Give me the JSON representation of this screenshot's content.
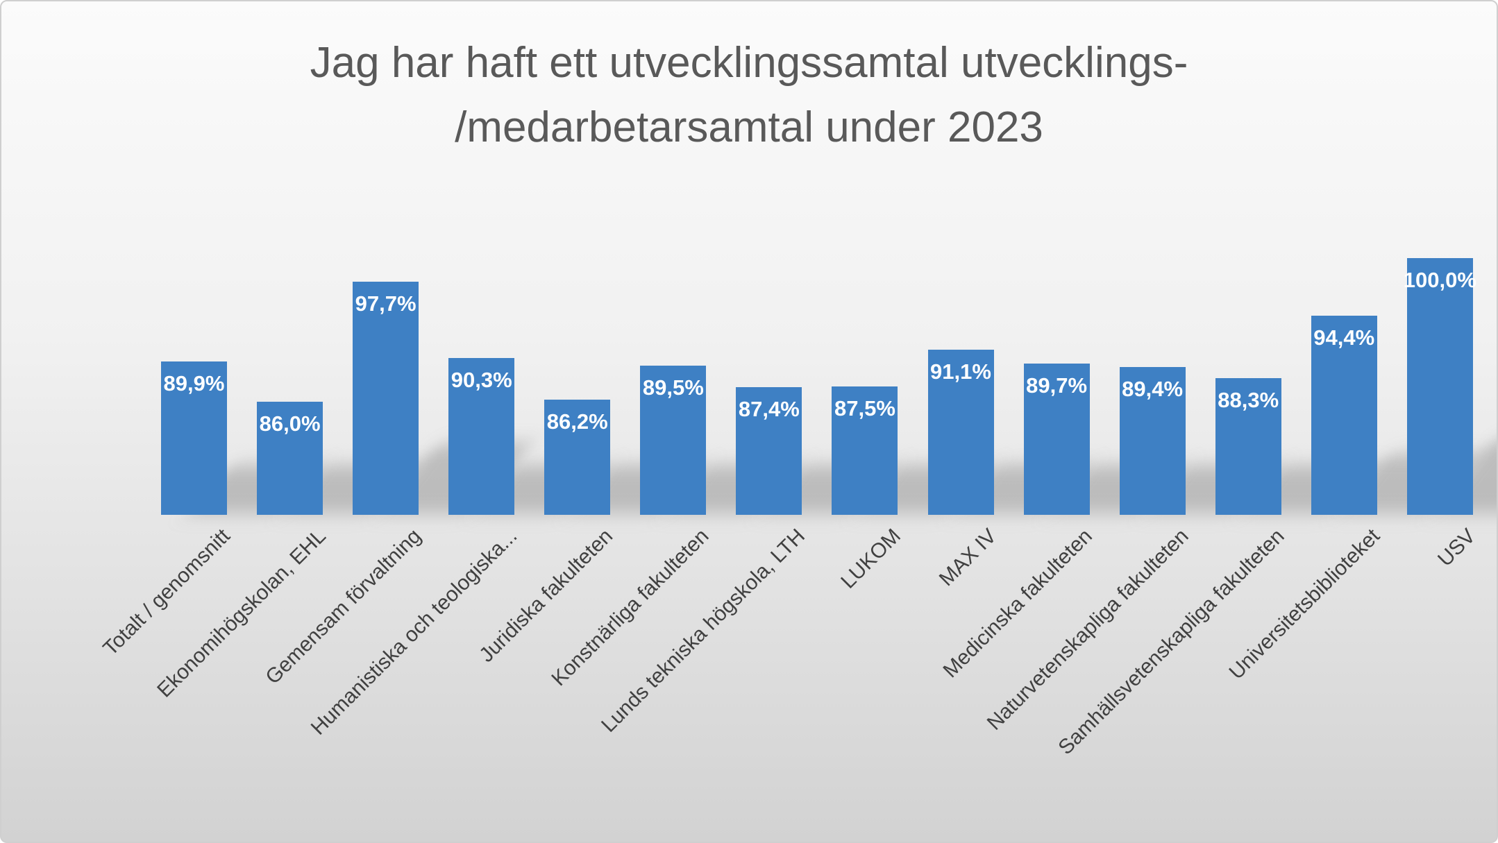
{
  "title": {
    "line1": "Jag har haft ett utvecklingssamtal utvecklings-",
    "line2": "/medarbetarsamtal under 2023"
  },
  "chart_data": {
    "type": "bar",
    "title": "Jag har haft ett utvecklingssamtal utvecklings-/medarbetarsamtal under 2023",
    "categories": [
      "Totalt / genomsnitt",
      "Ekonomihögskolan, EHL",
      "Gemensam förvaltning",
      "Humanistiska och teologiska...",
      "Juridiska fakulteten",
      "Konstnärliga fakulteten",
      "Lunds tekniska högskola, LTH",
      "LUKOM",
      "MAX IV",
      "Medicinska fakulteten",
      "Naturvetenskapliga fakulteten",
      "Samhällsvetenskapliga fakulteten",
      "Universitetsbiblioteket",
      "USV"
    ],
    "values": [
      89.9,
      86.0,
      97.7,
      90.3,
      86.2,
      89.5,
      87.4,
      87.5,
      91.1,
      89.7,
      89.4,
      88.3,
      94.4,
      100.0
    ],
    "value_labels": [
      "89,9%",
      "86,0%",
      "97,7%",
      "90,3%",
      "86,2%",
      "89,5%",
      "87,4%",
      "87,5%",
      "91,1%",
      "89,7%",
      "89,4%",
      "88,3%",
      "94,4%",
      "100,0%"
    ],
    "xlabel": "",
    "ylabel": "",
    "ylim": [
      75,
      100
    ],
    "grid": false,
    "legend": "none",
    "bar_color": "#3e80c4",
    "value_label_color": "#ffffff",
    "axis_label_color": "#404040",
    "title_color": "#595959"
  }
}
